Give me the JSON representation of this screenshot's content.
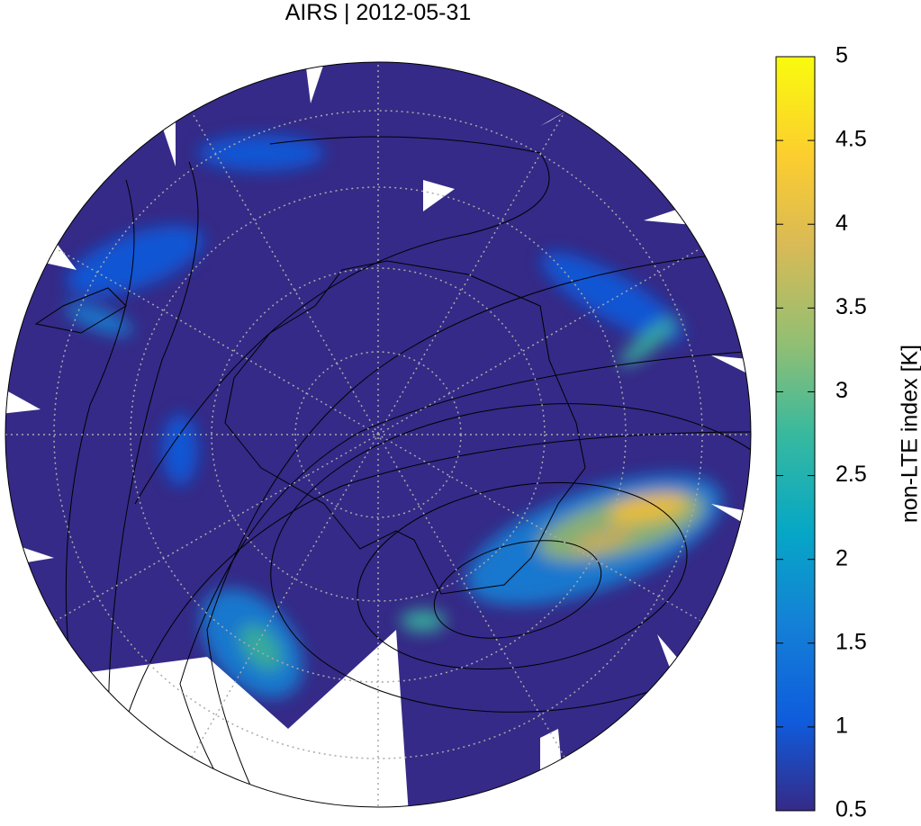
{
  "title": "AIRS | 2012-05-31",
  "colorbar": {
    "label": "non-LTE index [K]",
    "lim": [
      0.5,
      5
    ],
    "ticks": [
      0.5,
      1,
      1.5,
      2,
      2.5,
      3,
      3.5,
      4,
      4.5,
      5
    ]
  }
}
